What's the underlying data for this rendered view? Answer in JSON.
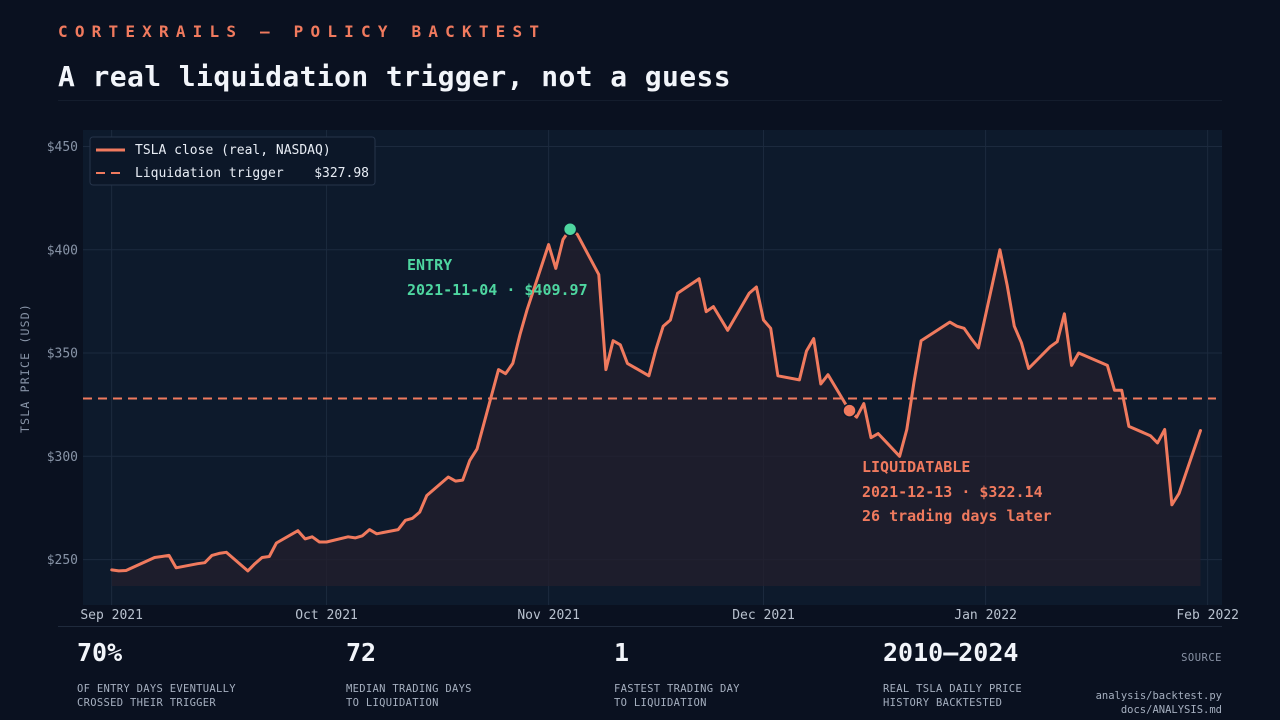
{
  "header": {
    "eyebrow": "CORTEXRAILS — POLICY BACKTEST",
    "title": "A real liquidation trigger, not a guess"
  },
  "colors": {
    "background": "#0a1120",
    "plot_background": "#0d1a2c",
    "accent": "#f07a5e",
    "entry": "#4ed6a0",
    "grid": "#1c2a3e"
  },
  "chart_data": {
    "type": "line",
    "ylabel": "TSLA PRICE (USD)",
    "xlabel": "",
    "ylim": [
      228,
      458
    ],
    "xlim": [
      "2021-08-28",
      "2022-02-03"
    ],
    "y_ticks": [
      250,
      300,
      350,
      400,
      450
    ],
    "y_tick_labels": [
      "$250",
      "$300",
      "$350",
      "$400",
      "$450"
    ],
    "x_ticks": [
      "2021-09-01",
      "2021-10-01",
      "2021-11-01",
      "2021-12-01",
      "2022-01-01",
      "2022-02-01"
    ],
    "x_tick_labels": [
      "Sep 2021",
      "Oct 2021",
      "Nov 2021",
      "Dec 2021",
      "Jan 2022",
      "Feb 2022"
    ],
    "grid": true,
    "legend_position": "top-left",
    "series": [
      {
        "name": "TSLA close (real, NASDAQ)",
        "color": "#f07a5e",
        "points": [
          [
            "2021-09-01",
            245
          ],
          [
            "2021-09-02",
            244.5
          ],
          [
            "2021-09-03",
            244.7
          ],
          [
            "2021-09-07",
            251
          ],
          [
            "2021-09-08",
            251.5
          ],
          [
            "2021-09-09",
            252
          ],
          [
            "2021-09-10",
            246
          ],
          [
            "2021-09-13",
            248
          ],
          [
            "2021-09-14",
            248.5
          ],
          [
            "2021-09-15",
            252
          ],
          [
            "2021-09-16",
            253
          ],
          [
            "2021-09-17",
            253.5
          ],
          [
            "2021-09-20",
            244.5
          ],
          [
            "2021-09-21",
            248
          ],
          [
            "2021-09-22",
            251
          ],
          [
            "2021-09-23",
            251.5
          ],
          [
            "2021-09-24",
            258
          ],
          [
            "2021-09-27",
            264
          ],
          [
            "2021-09-28",
            260
          ],
          [
            "2021-09-29",
            261
          ],
          [
            "2021-09-30",
            258.5
          ],
          [
            "2021-10-01",
            258.5
          ],
          [
            "2021-10-04",
            261
          ],
          [
            "2021-10-05",
            260.5
          ],
          [
            "2021-10-06",
            261.5
          ],
          [
            "2021-10-07",
            264.5
          ],
          [
            "2021-10-08",
            262.5
          ],
          [
            "2021-10-11",
            264.5
          ],
          [
            "2021-10-12",
            269
          ],
          [
            "2021-10-13",
            270
          ],
          [
            "2021-10-14",
            273
          ],
          [
            "2021-10-15",
            281
          ],
          [
            "2021-10-18",
            290
          ],
          [
            "2021-10-19",
            288
          ],
          [
            "2021-10-20",
            288.5
          ],
          [
            "2021-10-21",
            298
          ],
          [
            "2021-10-22",
            303.5
          ],
          [
            "2021-10-25",
            342
          ],
          [
            "2021-10-26",
            340
          ],
          [
            "2021-10-27",
            345
          ],
          [
            "2021-10-28",
            359
          ],
          [
            "2021-10-29",
            371
          ],
          [
            "2021-11-01",
            402.5
          ],
          [
            "2021-11-02",
            391
          ],
          [
            "2021-11-03",
            405
          ],
          [
            "2021-11-04",
            409.97
          ],
          [
            "2021-11-05",
            407.5
          ],
          [
            "2021-11-08",
            388
          ],
          [
            "2021-11-09",
            342
          ],
          [
            "2021-11-10",
            356
          ],
          [
            "2021-11-11",
            354
          ],
          [
            "2021-11-12",
            345
          ],
          [
            "2021-11-15",
            339
          ],
          [
            "2021-11-16",
            352
          ],
          [
            "2021-11-17",
            363
          ],
          [
            "2021-11-18",
            366
          ],
          [
            "2021-11-19",
            379
          ],
          [
            "2021-11-22",
            386
          ],
          [
            "2021-11-23",
            370
          ],
          [
            "2021-11-24",
            372.5
          ],
          [
            "2021-11-26",
            361
          ],
          [
            "2021-11-29",
            379
          ],
          [
            "2021-11-30",
            382
          ],
          [
            "2021-12-01",
            366
          ],
          [
            "2021-12-02",
            362
          ],
          [
            "2021-12-03",
            339
          ],
          [
            "2021-12-06",
            337
          ],
          [
            "2021-12-07",
            351
          ],
          [
            "2021-12-08",
            357
          ],
          [
            "2021-12-09",
            335
          ],
          [
            "2021-12-10",
            339.5
          ],
          [
            "2021-12-13",
            322.14
          ],
          [
            "2021-12-14",
            319
          ],
          [
            "2021-12-15",
            325.5
          ],
          [
            "2021-12-16",
            309
          ],
          [
            "2021-12-17",
            311
          ],
          [
            "2021-12-20",
            300
          ],
          [
            "2021-12-21",
            313
          ],
          [
            "2021-12-22",
            336
          ],
          [
            "2021-12-23",
            356
          ],
          [
            "2021-12-27",
            365
          ],
          [
            "2021-12-28",
            363
          ],
          [
            "2021-12-29",
            362
          ],
          [
            "2021-12-30",
            357
          ],
          [
            "2021-12-31",
            352.5
          ],
          [
            "2022-01-03",
            400
          ],
          [
            "2022-01-04",
            383
          ],
          [
            "2022-01-05",
            363
          ],
          [
            "2022-01-06",
            355
          ],
          [
            "2022-01-07",
            342.5
          ],
          [
            "2022-01-10",
            353
          ],
          [
            "2022-01-11",
            355.5
          ],
          [
            "2022-01-12",
            369
          ],
          [
            "2022-01-13",
            344
          ],
          [
            "2022-01-14",
            350
          ],
          [
            "2022-01-18",
            344
          ],
          [
            "2022-01-19",
            332
          ],
          [
            "2022-01-20",
            332
          ],
          [
            "2022-01-21",
            314.5
          ],
          [
            "2022-01-24",
            310
          ],
          [
            "2022-01-25",
            306.5
          ],
          [
            "2022-01-26",
            313
          ],
          [
            "2022-01-27",
            276.5
          ],
          [
            "2022-01-28",
            282
          ],
          [
            "2022-01-31",
            312.5
          ]
        ]
      },
      {
        "name": "Liquidation trigger",
        "value_label": "$327.98",
        "color": "#f07a5e",
        "style": "dashed",
        "value": 327.98
      }
    ],
    "annotations": [
      {
        "kind": "entry",
        "date": "2021-11-04",
        "price": 409.97,
        "title": "ENTRY",
        "detail": "2021-11-04 · $409.97"
      },
      {
        "kind": "liquidation",
        "date": "2021-12-13",
        "price": 322.14,
        "title": "LIQUIDATABLE",
        "detail": "2021-12-13 · $322.14",
        "note": "26 trading days later"
      }
    ]
  },
  "stats": [
    {
      "value": "70%",
      "label": "OF ENTRY DAYS EVENTUALLY\nCROSSED THEIR TRIGGER"
    },
    {
      "value": "72",
      "label": "MEDIAN TRADING DAYS\nTO LIQUIDATION"
    },
    {
      "value": "1",
      "label": "FASTEST TRADING DAY\nTO LIQUIDATION"
    },
    {
      "value": "2010–2024",
      "label": "REAL TSLA DAILY PRICE\nHISTORY BACKTESTED"
    }
  ],
  "source": {
    "title": "SOURCE",
    "files": [
      "analysis/backtest.py",
      "docs/ANALYSIS.md"
    ]
  }
}
